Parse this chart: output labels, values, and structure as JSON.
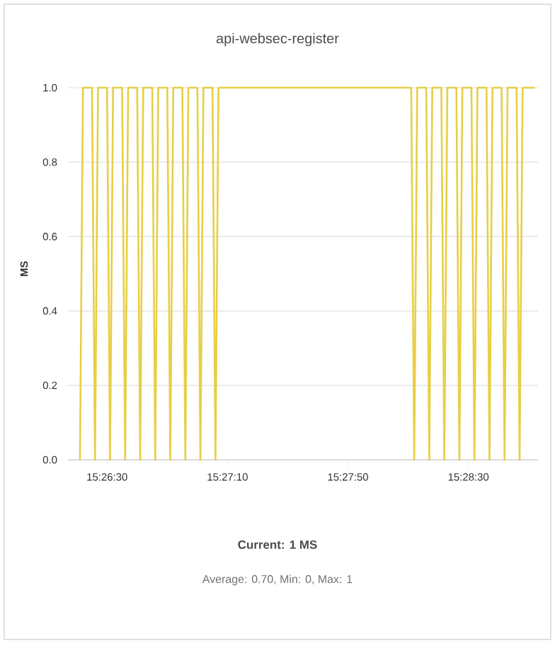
{
  "chart_data": {
    "type": "line",
    "title": "api-websec-register",
    "ylabel": "MS",
    "annotations": [
      "**Current: 1 MS**",
      "Average: 0.70, Min: 0, Max: 1"
    ],
    "x": [
      15.439167,
      15.439444,
      15.440278,
      15.440556,
      15.440833,
      15.441667,
      15.441944,
      15.442222,
      15.443056,
      15.443333,
      15.443611,
      15.444444,
      15.444722,
      15.445,
      15.445833,
      15.446111,
      15.446389,
      15.447222,
      15.4475,
      15.447778,
      15.448611,
      15.448889,
      15.449167,
      15.45,
      15.450278,
      15.450556,
      15.451389,
      15.451667,
      15.451944,
      15.469722,
      15.47,
      15.470278,
      15.471111,
      15.471389,
      15.471667,
      15.4725,
      15.472778,
      15.473056,
      15.473889,
      15.474167,
      15.474444,
      15.475278,
      15.475556,
      15.475833,
      15.476667,
      15.476944,
      15.477222,
      15.478056,
      15.478333,
      15.478611,
      15.479444,
      15.479722,
      15.48,
      15.481111
    ],
    "values": [
      0,
      1,
      1,
      0,
      1,
      1,
      0,
      1,
      1,
      0,
      1,
      1,
      0,
      1,
      1,
      0,
      1,
      1,
      0,
      1,
      1,
      0,
      1,
      1,
      0,
      1,
      1,
      0,
      1,
      1,
      0,
      1,
      1,
      0,
      1,
      1,
      0,
      1,
      1,
      0,
      1,
      1,
      0,
      1,
      1,
      0,
      1,
      1,
      0,
      1,
      1,
      0,
      1,
      1
    ],
    "color": "#e6cf45",
    "xlim": [
      15.43806,
      15.48142
    ],
    "xticks": [
      {
        "value": 15.441667,
        "label": "15:26:30"
      },
      {
        "value": 15.452778,
        "label": "15:27:10"
      },
      {
        "value": 15.463889,
        "label": "15:27:50"
      },
      {
        "value": 15.475,
        "label": "15:28:30"
      }
    ],
    "ylim": [
      0,
      1
    ],
    "yticks": [
      {
        "value": 0,
        "label": "0.0"
      },
      {
        "value": 0.2,
        "label": "0.2"
      },
      {
        "value": 0.4,
        "label": "0.4"
      },
      {
        "value": 0.6,
        "label": "0.6"
      },
      {
        "value": 0.8,
        "label": "0.8"
      },
      {
        "value": 1,
        "label": "1.0"
      }
    ],
    "grid": "y"
  }
}
